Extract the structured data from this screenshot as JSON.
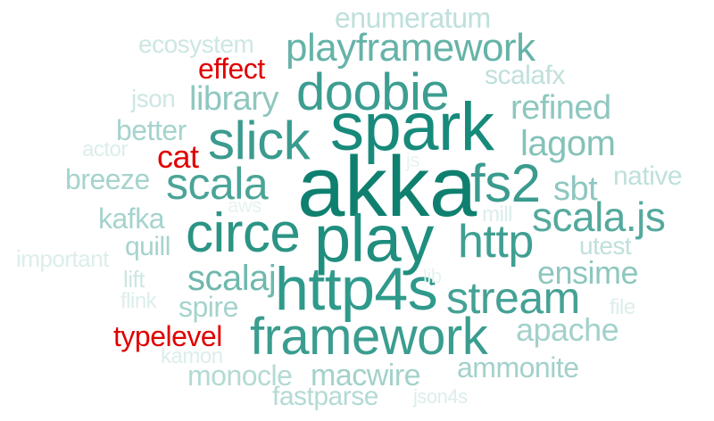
{
  "words": [
    {
      "text": "akka",
      "color": "#0f8070"
    },
    {
      "text": "spark",
      "color": "#178a7b"
    },
    {
      "text": "play",
      "color": "#1f8e7e"
    },
    {
      "text": "http4s",
      "color": "#2f9a8c"
    },
    {
      "text": "framework",
      "color": "#3b9d8f"
    },
    {
      "text": "circe",
      "color": "#2b9485"
    },
    {
      "text": "slick",
      "color": "#3a9b8e"
    },
    {
      "text": "doobie",
      "color": "#3c9d90"
    },
    {
      "text": "fs2",
      "color": "#3a9b8e"
    },
    {
      "text": "scala",
      "color": "#4ba498"
    },
    {
      "text": "http",
      "color": "#3f9f92"
    },
    {
      "text": "scala.js",
      "color": "#55a99d"
    },
    {
      "text": "stream",
      "color": "#45a195"
    },
    {
      "text": "playframework",
      "color": "#66b3a8"
    },
    {
      "text": "scalaj",
      "color": "#6fb8ad"
    },
    {
      "text": "lagom",
      "color": "#84c2b9"
    },
    {
      "text": "refined",
      "color": "#8ec7bf"
    },
    {
      "text": "library",
      "color": "#8ec7bf"
    },
    {
      "text": "sbt",
      "color": "#8ec7bf"
    },
    {
      "text": "ensime",
      "color": "#8ec7bf"
    },
    {
      "text": "apache",
      "color": "#a3d1cb"
    },
    {
      "text": "ammonite",
      "color": "#a3d1cb"
    },
    {
      "text": "macwire",
      "color": "#a3d1cb"
    },
    {
      "text": "spire",
      "color": "#a6d3cd"
    },
    {
      "text": "monocle",
      "color": "#b4dad5"
    },
    {
      "text": "fastparse",
      "color": "#b4dad5"
    },
    {
      "text": "breeze",
      "color": "#a6d3cd"
    },
    {
      "text": "kafka",
      "color": "#a6d3cd"
    },
    {
      "text": "quill",
      "color": "#a6d3cd"
    },
    {
      "text": "better",
      "color": "#a6d3cd"
    },
    {
      "text": "enumeratum",
      "color": "#bfe0dc"
    },
    {
      "text": "scalafx",
      "color": "#bfe0dc"
    },
    {
      "text": "native",
      "color": "#bfe0dc"
    },
    {
      "text": "utest",
      "color": "#bfe0dc"
    },
    {
      "text": "ecosystem",
      "color": "#cde7e3"
    },
    {
      "text": "json",
      "color": "#cde7e3"
    },
    {
      "text": "lift",
      "color": "#cde7e3"
    },
    {
      "text": "flink",
      "color": "#dbeeeb"
    },
    {
      "text": "kamon",
      "color": "#dbeeeb"
    },
    {
      "text": "important",
      "color": "#dbeeeb"
    },
    {
      "text": "actor",
      "color": "#dbeeeb"
    },
    {
      "text": "mill",
      "color": "#dbeeeb"
    },
    {
      "text": "file",
      "color": "#dbeeeb"
    },
    {
      "text": "json4s",
      "color": "#dbeeeb"
    },
    {
      "text": "aws",
      "color": "#e6f3f1"
    },
    {
      "text": "js",
      "color": "#e6f3f1"
    },
    {
      "text": "lib",
      "color": "#e6f3f1"
    },
    {
      "text": "effect",
      "color": "#e00000"
    },
    {
      "text": "cat",
      "color": "#e00000"
    },
    {
      "text": "typelevel",
      "color": "#e00000"
    }
  ]
}
